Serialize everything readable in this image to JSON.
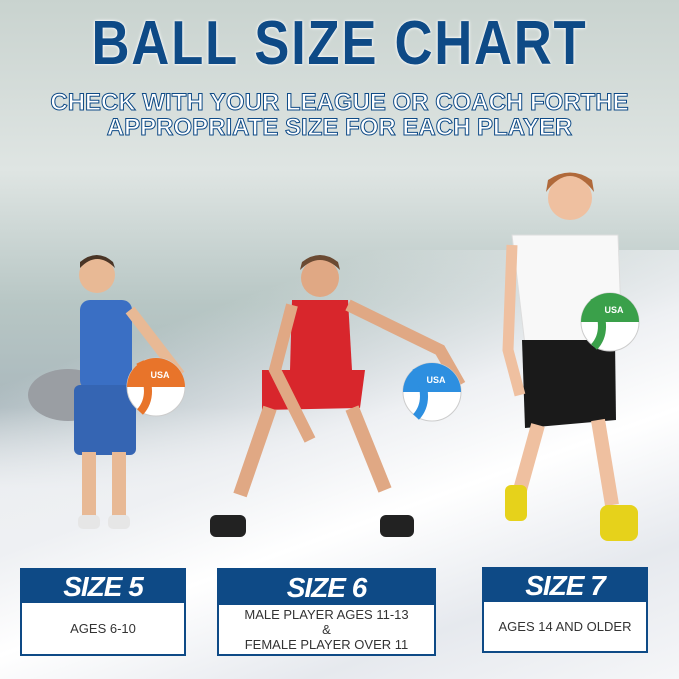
{
  "header": {
    "title": "BALL SIZE CHART",
    "subtitle_line1": "CHECK WITH YOUR LEAGUE OR COACH FORTHE",
    "subtitle_line2": "APPROPRIATE SIZE FOR EACH PLAYER"
  },
  "ball_logo": "USA",
  "colors": {
    "brand_blue": "#0e4a86",
    "ball_orange": "#e8742a",
    "ball_blue": "#2d8fe0",
    "ball_green": "#3aa04a"
  },
  "sizes": [
    {
      "label": "SIZE 5",
      "lines": [
        "AGES 6-10"
      ]
    },
    {
      "label": "SIZE 6",
      "lines": [
        "MALE PLAYER AGES 11-13",
        "&",
        "FEMALE PLAYER OVER 11"
      ]
    },
    {
      "label": "SIZE 7",
      "lines": [
        "AGES 14 AND OLDER"
      ]
    }
  ]
}
